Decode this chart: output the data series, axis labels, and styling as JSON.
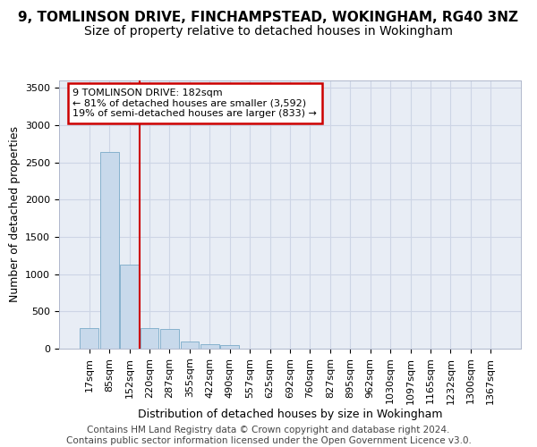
{
  "title": "9, TOMLINSON DRIVE, FINCHAMPSTEAD, WOKINGHAM, RG40 3NZ",
  "subtitle": "Size of property relative to detached houses in Wokingham",
  "xlabel": "Distribution of detached houses by size in Wokingham",
  "ylabel": "Number of detached properties",
  "bar_color": "#c8d9eb",
  "bar_edge_color": "#7aaac8",
  "vline_color": "#cc0000",
  "vline_position": 2.5,
  "annotation_text": "9 TOMLINSON DRIVE: 182sqm\n← 81% of detached houses are smaller (3,592)\n19% of semi-detached houses are larger (833) →",
  "annotation_box_facecolor": "#ffffff",
  "annotation_box_edgecolor": "#cc0000",
  "bin_labels": [
    "17sqm",
    "85sqm",
    "152sqm",
    "220sqm",
    "287sqm",
    "355sqm",
    "422sqm",
    "490sqm",
    "557sqm",
    "625sqm",
    "692sqm",
    "760sqm",
    "827sqm",
    "895sqm",
    "962sqm",
    "1030sqm",
    "1097sqm",
    "1165sqm",
    "1232sqm",
    "1300sqm",
    "1367sqm"
  ],
  "bar_values": [
    275,
    2640,
    1130,
    280,
    270,
    100,
    65,
    45,
    0,
    0,
    0,
    0,
    0,
    0,
    0,
    0,
    0,
    0,
    0,
    0,
    0
  ],
  "ylim": [
    0,
    3600
  ],
  "yticks": [
    0,
    500,
    1000,
    1500,
    2000,
    2500,
    3000,
    3500
  ],
  "grid_color": "#cdd5e5",
  "background_color": "#e8edf5",
  "footer_text": "Contains HM Land Registry data © Crown copyright and database right 2024.\nContains public sector information licensed under the Open Government Licence v3.0.",
  "title_fontsize": 11,
  "subtitle_fontsize": 10,
  "axis_label_fontsize": 9,
  "tick_fontsize": 8,
  "footer_fontsize": 7.5
}
